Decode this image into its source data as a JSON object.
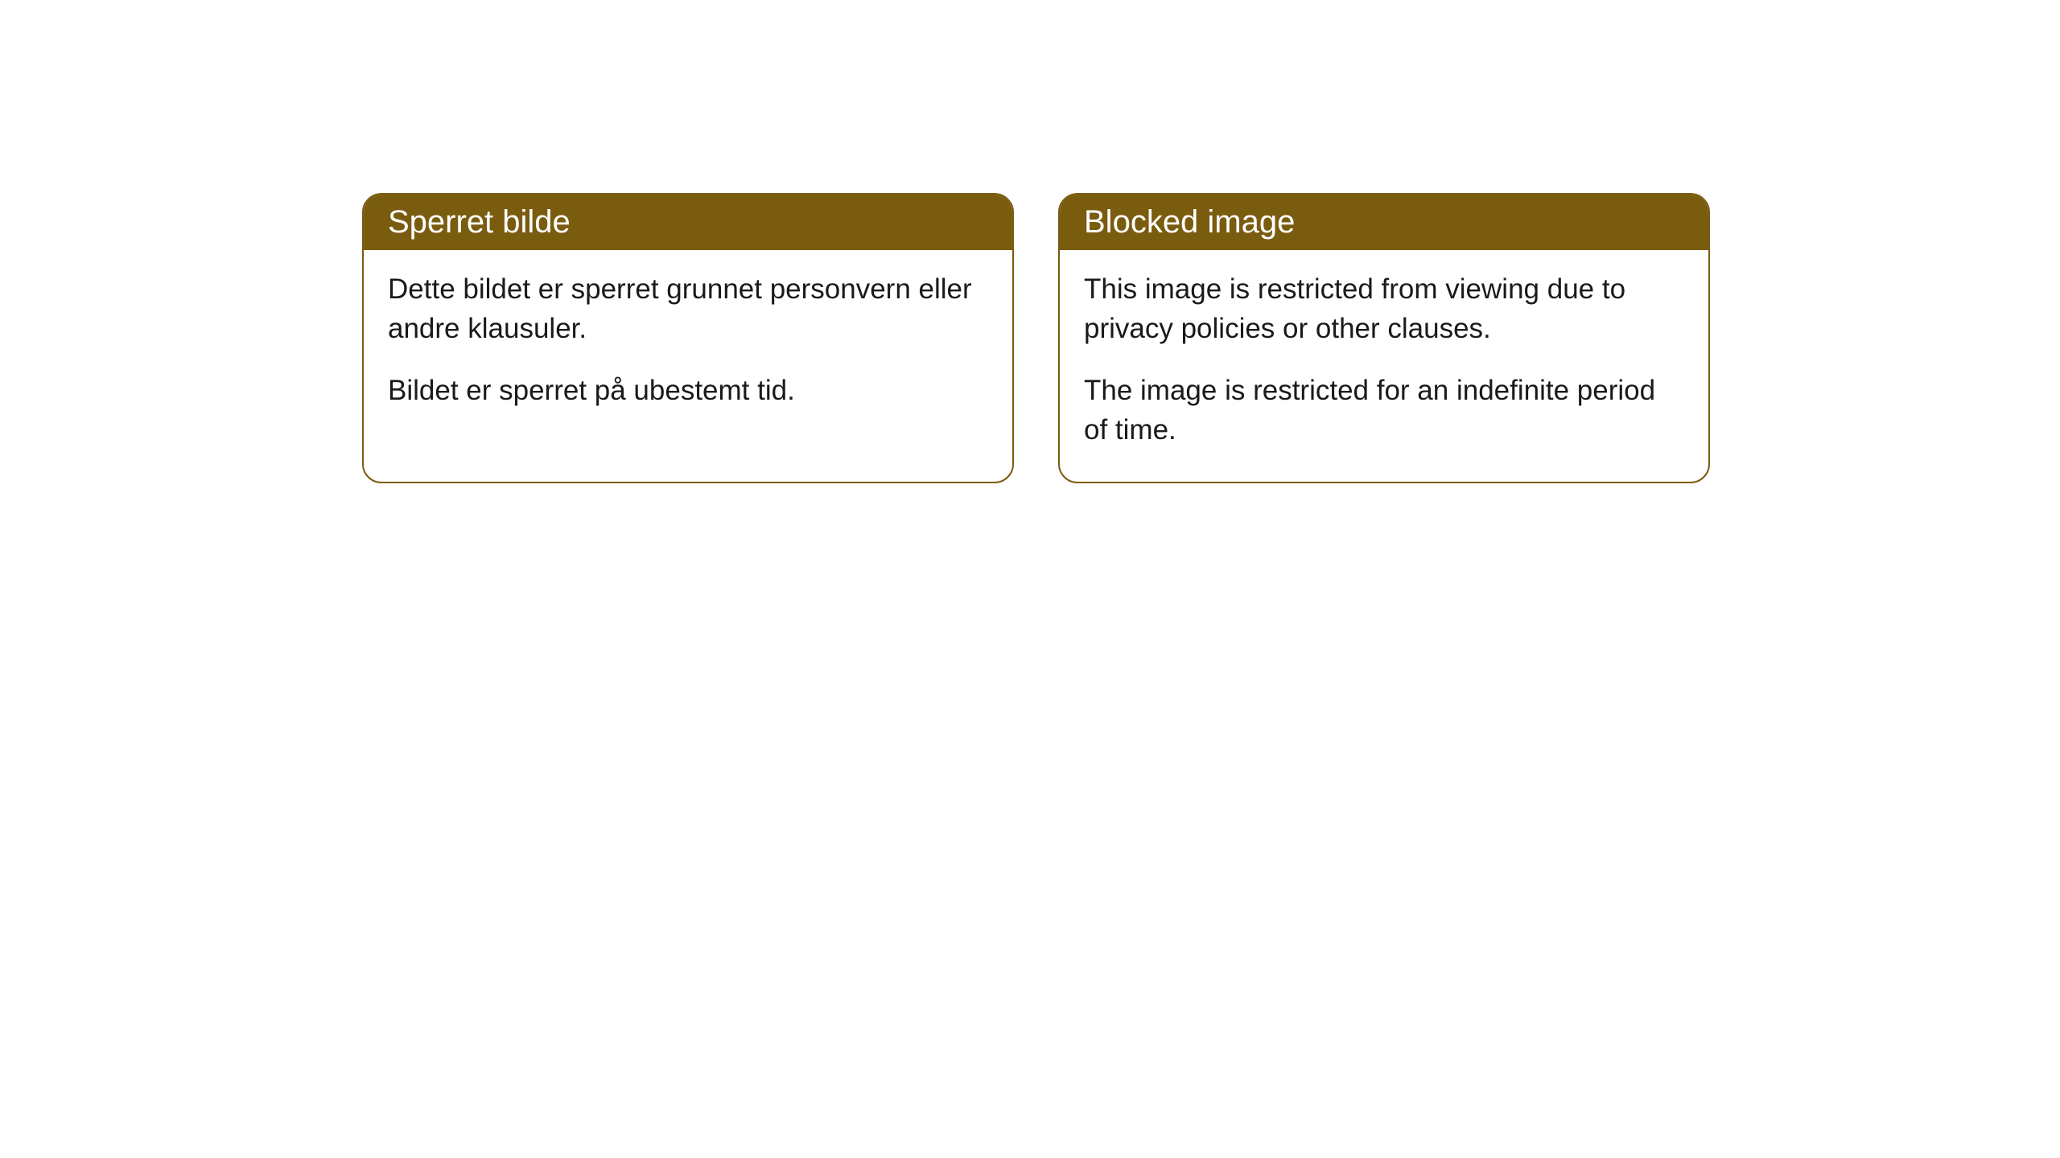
{
  "cards": [
    {
      "title": "Sperret bilde",
      "paragraph1": "Dette bildet er sperret grunnet personvern eller andre klausuler.",
      "paragraph2": "Bildet er sperret på ubestemt tid."
    },
    {
      "title": "Blocked image",
      "paragraph1": "This image is restricted from viewing due to privacy policies or other clauses.",
      "paragraph2": "The image is restricted for an indefinite period of time."
    }
  ],
  "styling": {
    "header_background": "#7a5c0f",
    "header_text_color": "#ffffff",
    "border_color": "#7a5c0f",
    "body_background": "#ffffff",
    "body_text_color": "#1a1a1a",
    "border_radius": 24,
    "title_fontsize": 40,
    "body_fontsize": 35
  }
}
